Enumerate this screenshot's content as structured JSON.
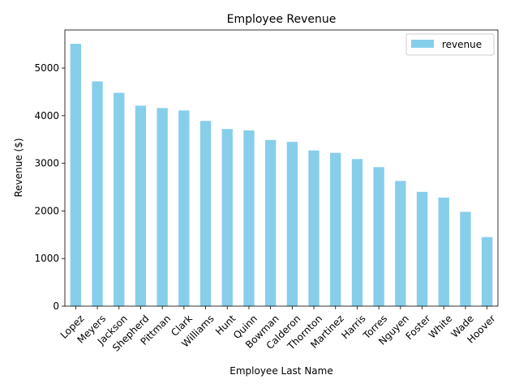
{
  "chart_data": {
    "type": "bar",
    "title": "Employee Revenue",
    "xlabel": "Employee Last Name",
    "ylabel": "Revenue ($)",
    "categories": [
      "Lopez",
      "Meyers",
      "Jackson",
      "Shepherd",
      "Pittman",
      "Clark",
      "Williams",
      "Hunt",
      "Quinn",
      "Bowman",
      "Calderon",
      "Thornton",
      "Martinez",
      "Harris",
      "Torres",
      "Nguyen",
      "Foster",
      "White",
      "Wade",
      "Hoover"
    ],
    "series": [
      {
        "name": "revenue",
        "color": "#87ceeb",
        "values": [
          5510,
          4720,
          4480,
          4210,
          4160,
          4110,
          3890,
          3720,
          3690,
          3490,
          3450,
          3270,
          3220,
          3090,
          2920,
          2630,
          2400,
          2280,
          1980,
          1450
        ]
      }
    ],
    "ylim": [
      0,
      5800
    ],
    "yticks": [
      0,
      1000,
      2000,
      3000,
      4000,
      5000
    ],
    "grid": false,
    "legend": "top-right",
    "xtick_rotation_deg": 45
  }
}
